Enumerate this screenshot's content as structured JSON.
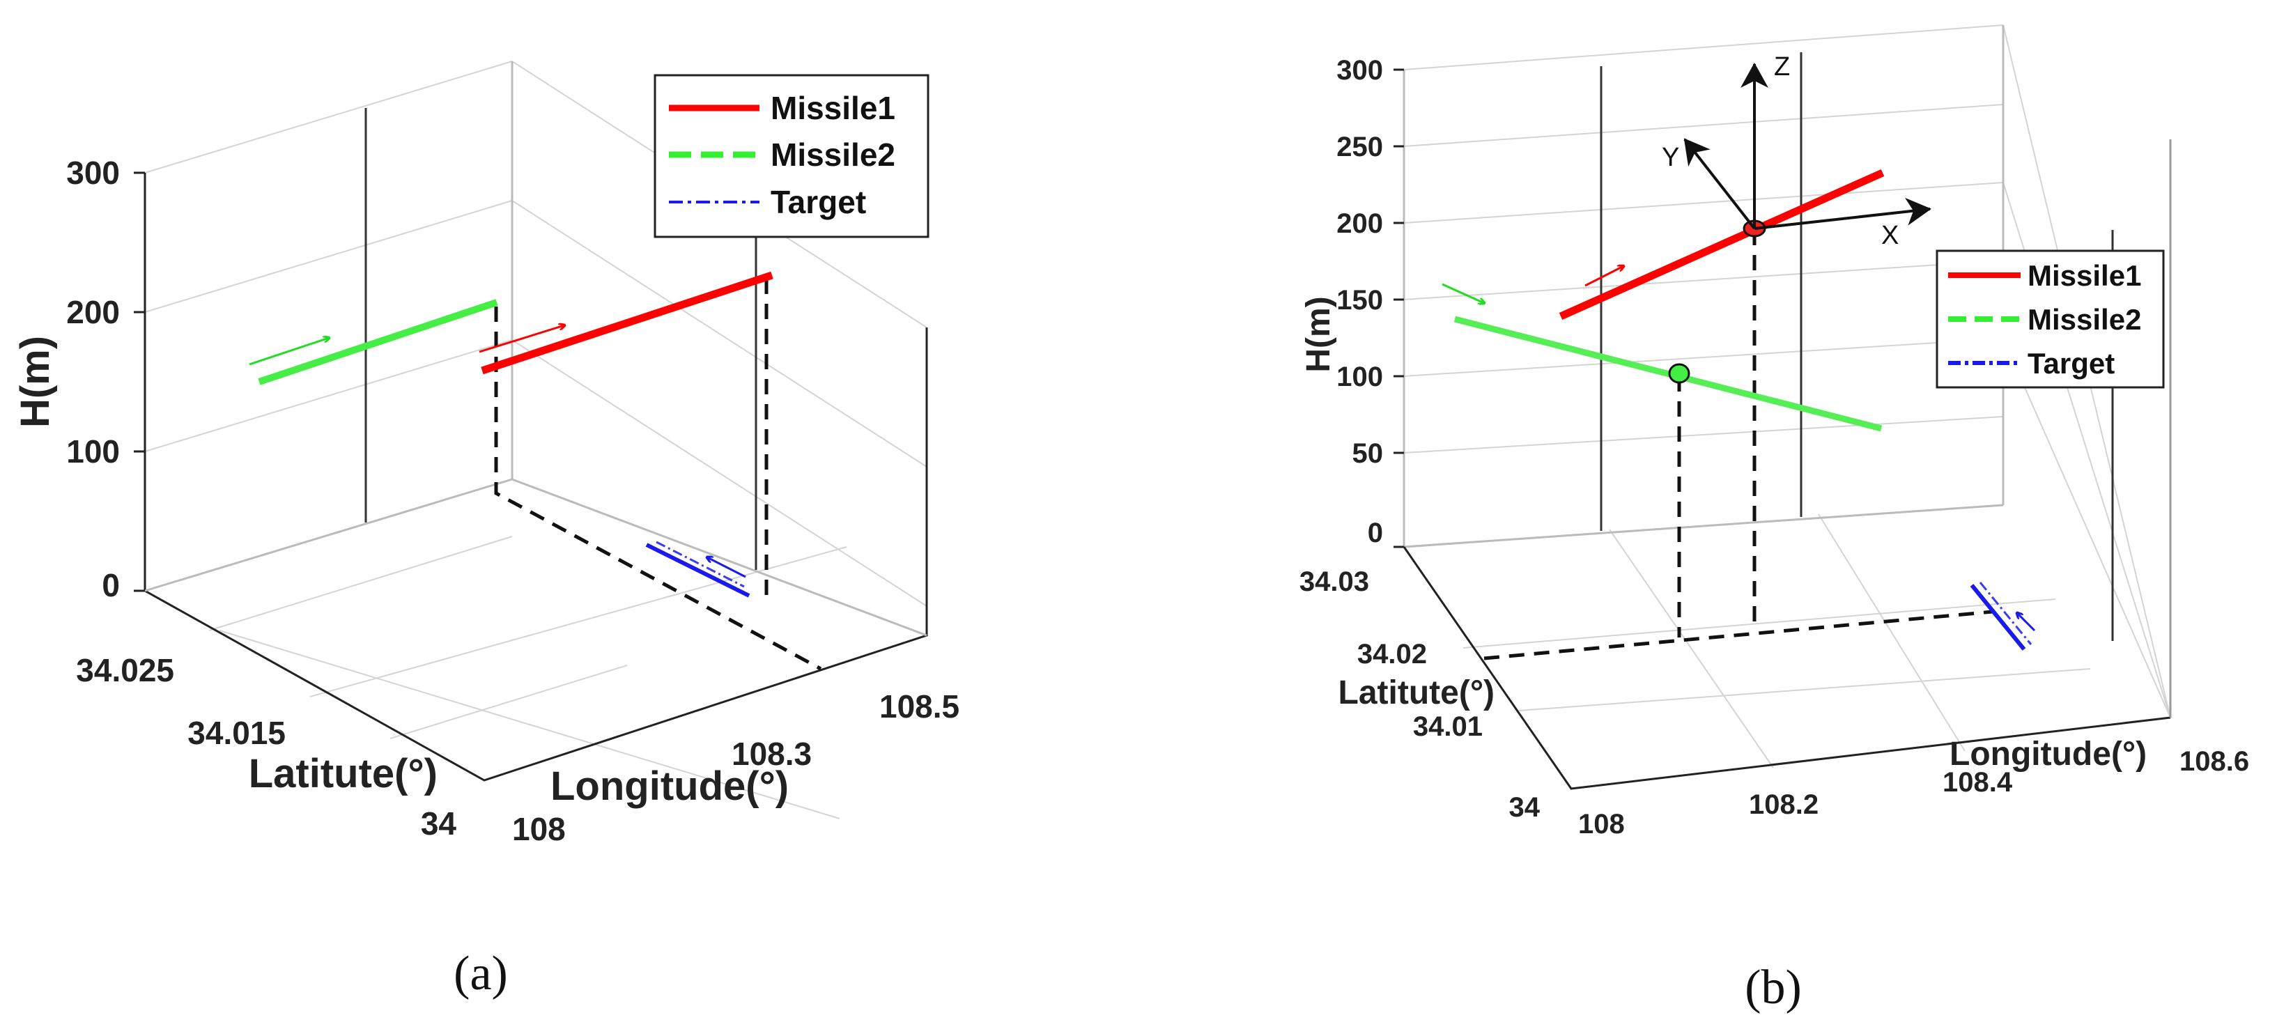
{
  "chart_data": [
    {
      "panel": "(a)",
      "type": "line3d",
      "ylabel": "H(m)",
      "xlabel": "Longitude(°)",
      "zlabel_lat": "Latitute(°)",
      "h_ticks": [
        "0",
        "100",
        "200",
        "300"
      ],
      "lat_ticks": [
        "34.025",
        "34.015",
        "34"
      ],
      "lon_ticks": [
        "108",
        "108.3",
        "108.5"
      ],
      "legend": [
        "Missile1",
        "Missile2",
        "Target"
      ],
      "legend_position": "top-right",
      "series": [
        {
          "name": "Missile1",
          "color": "#ff0000",
          "style": "solid"
        },
        {
          "name": "Missile2",
          "color": "#33ee33",
          "style": "dashed"
        },
        {
          "name": "Target",
          "color": "#1a1aee",
          "style": "dash-dot"
        }
      ]
    },
    {
      "panel": "(b)",
      "type": "line3d",
      "ylabel": "H(m)",
      "xlabel": "Longitude(°)",
      "zlabel_lat": "Latitute(°)",
      "h_ticks": [
        "0",
        "50",
        "100",
        "150",
        "200",
        "250",
        "300"
      ],
      "lat_ticks": [
        "34.03",
        "34.02",
        "34.01",
        "34"
      ],
      "lon_ticks": [
        "108",
        "108.2",
        "108.4",
        "108.6"
      ],
      "legend": [
        "Missile1",
        "Missile2",
        "Target"
      ],
      "legend_position": "top-right",
      "frame_axes": [
        "X",
        "Y",
        "Z"
      ],
      "series": [
        {
          "name": "Missile1",
          "color": "#ff0000",
          "style": "solid"
        },
        {
          "name": "Missile2",
          "color": "#33ee33",
          "style": "dashed"
        },
        {
          "name": "Target",
          "color": "#1a1aee",
          "style": "dash-dot"
        }
      ]
    }
  ]
}
